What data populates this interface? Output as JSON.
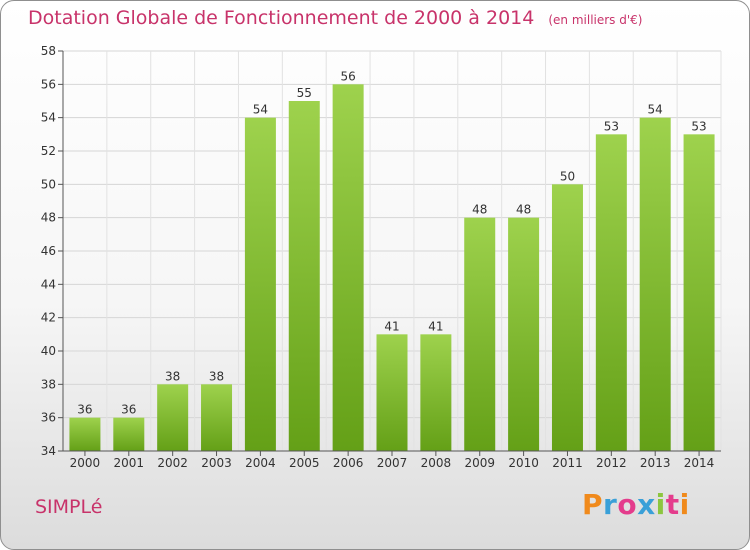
{
  "chart_data": {
    "type": "bar",
    "title": "Dotation Globale de Fonctionnement de 2000 à 2014",
    "subtitle": "(en milliers d'€)",
    "categories": [
      "2000",
      "2001",
      "2002",
      "2003",
      "2004",
      "2005",
      "2006",
      "2007",
      "2008",
      "2009",
      "2010",
      "2011",
      "2012",
      "2013",
      "2014"
    ],
    "values": [
      36,
      36,
      38,
      38,
      54,
      55,
      56,
      41,
      41,
      48,
      48,
      50,
      53,
      54,
      53
    ],
    "ylim": [
      34,
      58
    ],
    "yticks": [
      34,
      36,
      38,
      40,
      42,
      44,
      46,
      48,
      50,
      52,
      54,
      56,
      58
    ],
    "xlabel": "",
    "ylabel": "",
    "grid": true,
    "bar_color": "#7fbe2e"
  },
  "footer": {
    "commune": "SIMPLé",
    "brand": "Proxiti",
    "brand_colors": [
      "#f08a1c",
      "#3aa0d8",
      "#e43c8c",
      "#3aa0d8",
      "#8cc63f",
      "#e43c8c",
      "#f08a1c"
    ]
  }
}
